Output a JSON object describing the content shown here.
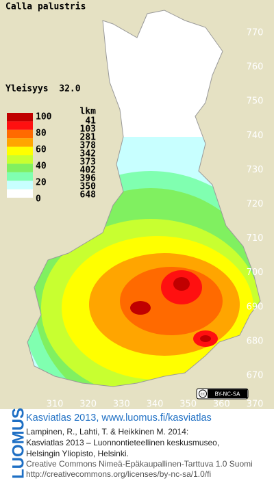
{
  "title": "Calla palustris",
  "frequency": "Yleisyys  32.0",
  "legend": {
    "header": "lkm",
    "scale_labels": [
      100,
      80,
      60,
      40,
      20,
      0
    ],
    "counts": [
      41,
      103,
      281,
      378,
      342,
      373,
      402,
      396,
      350,
      648
    ],
    "colors": [
      "#c00000",
      "#ff1010",
      "#ff6a00",
      "#ffa500",
      "#ffff00",
      "#c8ff30",
      "#80f060",
      "#80ffb0",
      "#c8ffff",
      "#ffffff"
    ]
  },
  "grid": {
    "north": [
      770,
      760,
      750,
      740,
      730,
      720,
      710,
      700,
      690,
      680,
      670
    ],
    "east": [
      310,
      320,
      330,
      340,
      350,
      360,
      370
    ]
  },
  "license_badge": "BY-NC-SA",
  "footer": {
    "brand": "LUOMUS",
    "headline": "Kasviatlas 2013, www.luomus.fi/kasviatlas",
    "citation": [
      "Lampinen, R., Lahti, T. & Heikkinen M. 2014:",
      "Kasviatlas 2013 – Luonnontieteellinen keskusmuseo,",
      "Helsingin Yliopisto, Helsinki."
    ],
    "license": [
      "Creative Commons Nimeä-Epäkaupallinen-Tarttuva 1.0 Suomi",
      "http://creativecommons.org/licenses/by-nc-sa/1.0/fi"
    ]
  }
}
